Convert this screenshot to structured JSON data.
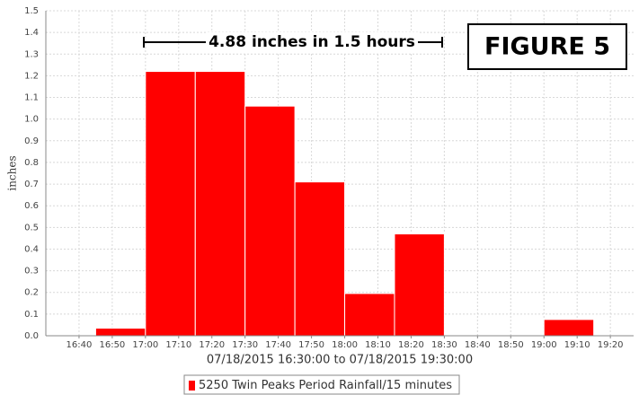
{
  "chart_data": {
    "type": "histogram",
    "ylabel": "inches",
    "xlabel": "07/18/2015 16:30:00 to 07/18/2015 19:30:00",
    "annotation": "4.88 inches in 1.5 hours",
    "figure_label": "FIGURE 5",
    "series": [
      {
        "name": "5250 Twin Peaks Period Rainfall/15 minutes",
        "color": "#ff0000",
        "bins": [
          1005,
          1020,
          1035,
          1050,
          1065,
          1080,
          1095,
          1110,
          1125,
          1140,
          1155
        ],
        "values": [
          0.035,
          1.22,
          1.22,
          1.06,
          0.71,
          0.195,
          0.47,
          0,
          0,
          0.075
        ]
      }
    ],
    "xlim": [
      990,
      1167
    ],
    "xticks": [
      {
        "value": 1000,
        "label": "16:40"
      },
      {
        "value": 1010,
        "label": "16:50"
      },
      {
        "value": 1020,
        "label": "17:00"
      },
      {
        "value": 1030,
        "label": "17:10"
      },
      {
        "value": 1040,
        "label": "17:20"
      },
      {
        "value": 1050,
        "label": "17:30"
      },
      {
        "value": 1060,
        "label": "17:40"
      },
      {
        "value": 1070,
        "label": "17:50"
      },
      {
        "value": 1080,
        "label": "18:00"
      },
      {
        "value": 1090,
        "label": "18:10"
      },
      {
        "value": 1100,
        "label": "18:20"
      },
      {
        "value": 1110,
        "label": "18:30"
      },
      {
        "value": 1120,
        "label": "18:40"
      },
      {
        "value": 1130,
        "label": "18:50"
      },
      {
        "value": 1140,
        "label": "19:00"
      },
      {
        "value": 1150,
        "label": "19:10"
      },
      {
        "value": 1160,
        "label": "19:20"
      }
    ],
    "ylim": [
      0,
      1.5
    ],
    "yticks": [
      {
        "value": 0,
        "label": "0.0"
      },
      0.1,
      0.2,
      0.3,
      0.4,
      0.5,
      0.6,
      0.7,
      0.8,
      0.9,
      {
        "value": 1,
        "label": "1.0"
      },
      1.1,
      1.2,
      1.3,
      1.4,
      1.5
    ],
    "grid": true
  }
}
